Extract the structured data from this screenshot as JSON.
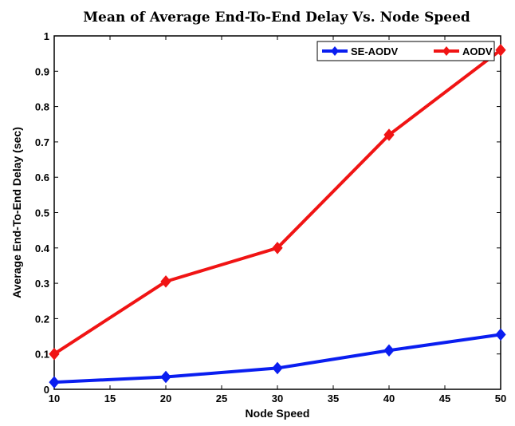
{
  "chart_data": {
    "type": "line",
    "title": "Mean of Average End-To-End Delay Vs. Node Speed",
    "xlabel": "Node Speed",
    "ylabel": "Average End-To-End Delay (sec)",
    "x": [
      10,
      20,
      30,
      40,
      50
    ],
    "xlim": [
      10,
      50
    ],
    "ylim": [
      0,
      1
    ],
    "xticks": [
      "10",
      "15",
      "20",
      "25",
      "30",
      "35",
      "40",
      "45",
      "50"
    ],
    "yticks": [
      "0",
      "0.1",
      "0.2",
      "0.3",
      "0.4",
      "0.5",
      "0.6",
      "0.7",
      "0.8",
      "0.9",
      "1"
    ],
    "grid": false,
    "legend_position": "top-right",
    "series": [
      {
        "name": "SE-AODV",
        "color": "#0a1ef0",
        "values": [
          0.02,
          0.035,
          0.06,
          0.11,
          0.155
        ]
      },
      {
        "name": "AODV",
        "color": "#f01414",
        "values": [
          0.1,
          0.305,
          0.4,
          0.72,
          0.96
        ]
      }
    ]
  }
}
